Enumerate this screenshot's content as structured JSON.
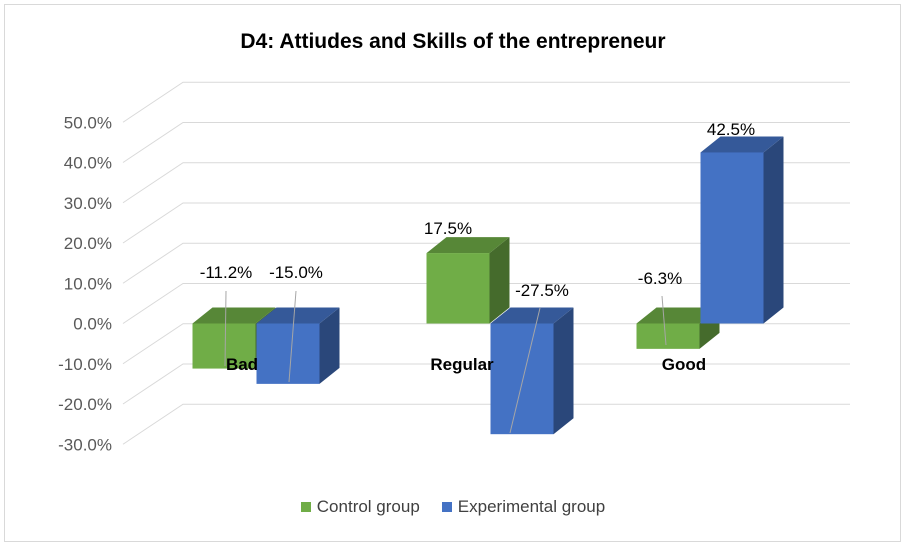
{
  "chart_data": {
    "type": "bar",
    "title": "D4: Attiudes and Skills of the entrepreneur",
    "categories": [
      "Bad",
      "Regular",
      "Good"
    ],
    "series": [
      {
        "name": "Control group",
        "values": [
          -11.2,
          17.5,
          -6.3
        ],
        "labels": [
          "-11.2%",
          "17.5%",
          "-6.3%"
        ],
        "color": "#70ad47"
      },
      {
        "name": "Experimental group",
        "values": [
          -15.0,
          -27.5,
          42.5
        ],
        "labels": [
          "-15.0%",
          "-27.5%",
          "42.5%"
        ],
        "color": "#4472c4"
      }
    ],
    "yticks": [
      "-30.0%",
      "-20.0%",
      "-10.0%",
      "0.0%",
      "10.0%",
      "20.0%",
      "30.0%",
      "40.0%",
      "50.0%"
    ],
    "ylim": [
      -30,
      50
    ],
    "grid": true,
    "legend_position": "bottom"
  }
}
